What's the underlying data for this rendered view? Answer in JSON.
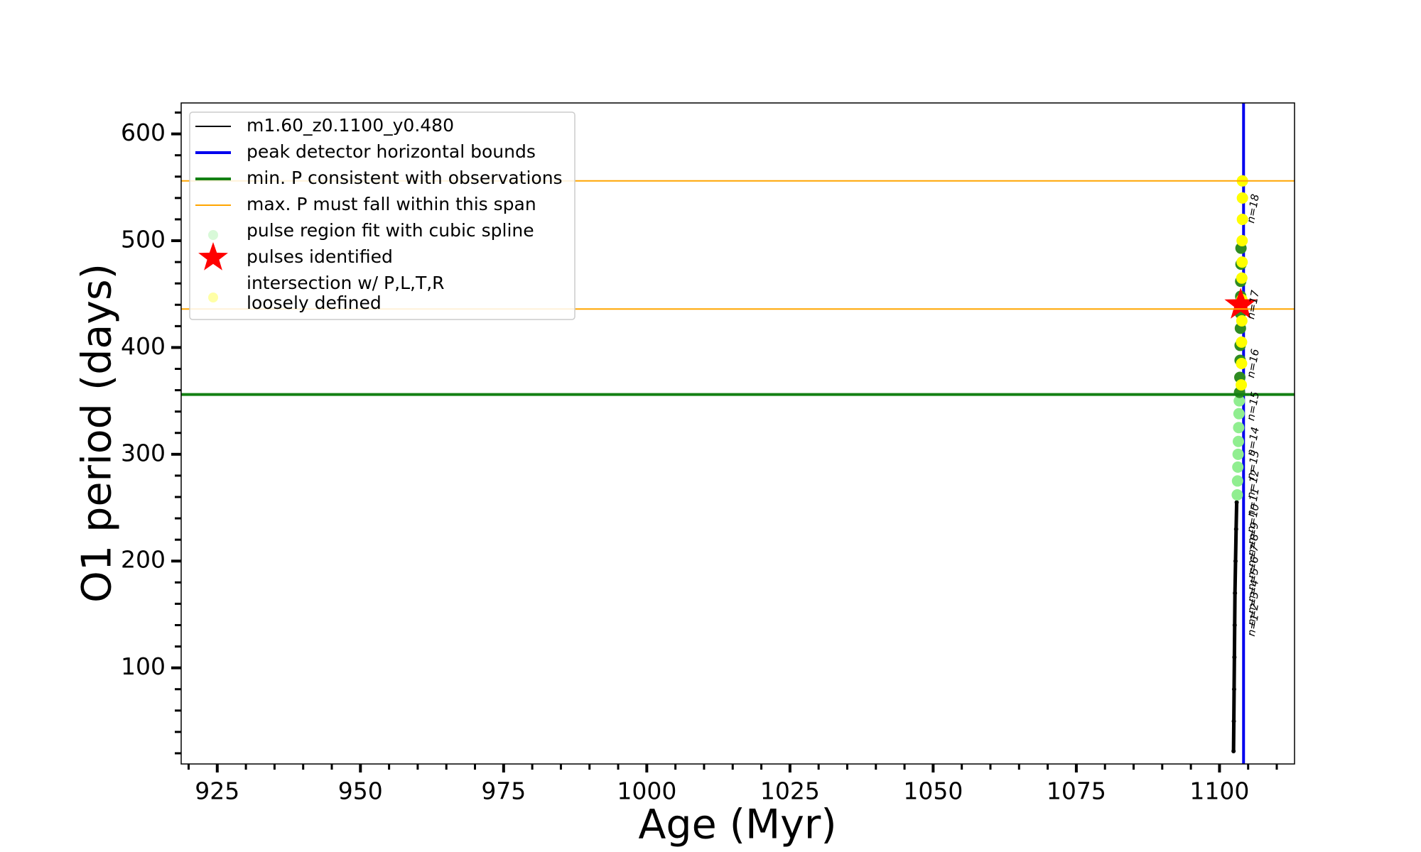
{
  "chart_data": {
    "type": "line",
    "xlabel": "Age (Myr)",
    "ylabel": "O1 period (days)",
    "xlim": [
      918.7,
      1113.1
    ],
    "ylim": [
      10,
      629
    ],
    "xticks": [
      925,
      950,
      975,
      1000,
      1025,
      1050,
      1075,
      1100
    ],
    "yticks": [
      100,
      200,
      300,
      400,
      500,
      600
    ],
    "xminorticks": [
      920,
      930,
      935,
      940,
      945,
      955,
      960,
      965,
      970,
      980,
      985,
      990,
      995,
      1005,
      1010,
      1015,
      1020,
      1030,
      1035,
      1040,
      1045,
      1055,
      1060,
      1065,
      1070,
      1080,
      1085,
      1090,
      1095,
      1105,
      1110
    ],
    "yminorticks": [
      20,
      40,
      60,
      80,
      120,
      140,
      160,
      180,
      220,
      240,
      260,
      280,
      320,
      340,
      360,
      380,
      420,
      440,
      460,
      480,
      520,
      540,
      560,
      580,
      620
    ],
    "legend": "upper left",
    "series": [
      {
        "name": "m1.60_z0.1100_y0.480",
        "kind": "line",
        "color": "#000000",
        "x": [
          1102.45,
          1102.5,
          1102.55,
          1102.6,
          1102.65,
          1102.7,
          1102.8,
          1102.9,
          1103.0
        ],
        "values": [
          22,
          50,
          80,
          110,
          140,
          170,
          200,
          230,
          255
        ]
      },
      {
        "name": "peak detector horizontal bounds",
        "kind": "vline",
        "color": "#0000ee",
        "x": [
          1104.2
        ]
      },
      {
        "name": "min. P consistent with observations",
        "kind": "hline",
        "color": "#138013",
        "values": [
          356
        ]
      },
      {
        "name": "max. P must fall within this span",
        "kind": "hline",
        "color": "#ffa500",
        "values": [
          556,
          436
        ]
      },
      {
        "name": "pulse region fit with cubic spline",
        "kind": "scatter",
        "color": "#90ee90",
        "x": [
          1103.1,
          1103.15,
          1103.2,
          1103.25,
          1103.3,
          1103.35,
          1103.4,
          1103.45
        ],
        "values": [
          262,
          275,
          288,
          300,
          312,
          325,
          338,
          350
        ]
      },
      {
        "name": "pulses identified",
        "kind": "star",
        "color": "#ff0000",
        "x": [
          1103.7
        ],
        "values": [
          440
        ]
      },
      {
        "name": "intersection w/ P,L,T,R\nloosely defined",
        "kind": "scatter",
        "color": "#ffff00",
        "x": [
          1103.8,
          1103.85,
          1103.85,
          1103.9,
          1103.9,
          1103.9,
          1103.95,
          1103.95,
          1104.0,
          1104.0,
          1104.0
        ],
        "values": [
          365,
          385,
          405,
          425,
          445,
          465,
          480,
          500,
          520,
          540,
          556
        ]
      },
      {
        "kind": "scatter",
        "color": "#2e8b22",
        "x": [
          1103.5,
          1103.55,
          1103.6,
          1103.6,
          1103.65,
          1103.65,
          1103.7,
          1103.7,
          1103.75,
          1103.75
        ],
        "values": [
          358,
          372,
          388,
          402,
          418,
          432,
          448,
          462,
          478,
          493
        ]
      }
    ],
    "annotations": [
      {
        "text": "n=1",
        "x": 1105.9,
        "y": 140
      },
      {
        "text": "n=2",
        "x": 1105.9,
        "y": 150
      },
      {
        "text": "n=3",
        "x": 1105.9,
        "y": 161
      },
      {
        "text": "n=4",
        "x": 1105.9,
        "y": 172
      },
      {
        "text": "n=5",
        "x": 1105.9,
        "y": 183
      },
      {
        "text": "n=6",
        "x": 1105.9,
        "y": 194
      },
      {
        "text": "n=7",
        "x": 1105.9,
        "y": 205
      },
      {
        "text": "n=8",
        "x": 1105.9,
        "y": 215
      },
      {
        "text": "n=9",
        "x": 1105.9,
        "y": 226
      },
      {
        "text": "n=10",
        "x": 1105.9,
        "y": 240
      },
      {
        "text": "n=11",
        "x": 1105.9,
        "y": 255
      },
      {
        "text": "n=12",
        "x": 1105.9,
        "y": 272
      },
      {
        "text": "n=13",
        "x": 1105.9,
        "y": 290
      },
      {
        "text": "n=14",
        "x": 1105.9,
        "y": 312
      },
      {
        "text": "n=15",
        "x": 1105.9,
        "y": 345
      },
      {
        "text": "n=16",
        "x": 1105.9,
        "y": 385
      },
      {
        "text": "n=17",
        "x": 1105.9,
        "y": 440
      },
      {
        "text": "n=18",
        "x": 1105.9,
        "y": 530
      }
    ]
  }
}
